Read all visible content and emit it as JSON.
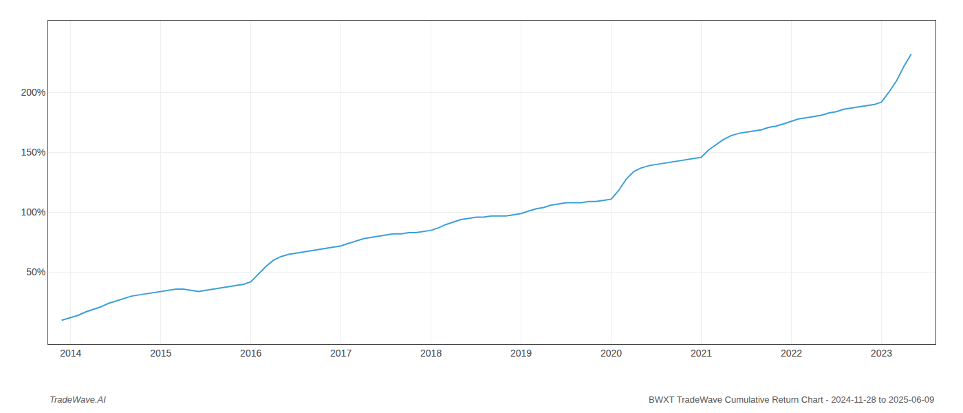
{
  "chart_data": {
    "type": "line",
    "title": "BWXT TradeWave Cumulative Return Chart - 2024-11-28 to 2025-06-09",
    "annotations": [
      "TradeWave.AI"
    ],
    "color": "#3a9fd8",
    "x": [
      2013.9,
      2013.95,
      2014.0,
      2014.08,
      2014.17,
      2014.25,
      2014.33,
      2014.42,
      2014.5,
      2014.58,
      2014.67,
      2014.75,
      2014.83,
      2014.92,
      2015.0,
      2015.08,
      2015.17,
      2015.25,
      2015.33,
      2015.42,
      2015.5,
      2015.58,
      2015.67,
      2015.75,
      2015.83,
      2015.92,
      2016.0,
      2016.08,
      2016.17,
      2016.25,
      2016.33,
      2016.42,
      2016.5,
      2016.58,
      2016.67,
      2016.75,
      2016.83,
      2016.92,
      2017.0,
      2017.08,
      2017.17,
      2017.25,
      2017.33,
      2017.42,
      2017.5,
      2017.58,
      2017.67,
      2017.75,
      2017.83,
      2017.92,
      2018.0,
      2018.08,
      2018.17,
      2018.25,
      2018.33,
      2018.42,
      2018.5,
      2018.58,
      2018.67,
      2018.75,
      2018.83,
      2018.92,
      2019.0,
      2019.08,
      2019.17,
      2019.25,
      2019.33,
      2019.42,
      2019.5,
      2019.58,
      2019.67,
      2019.75,
      2019.83,
      2019.92,
      2020.0,
      2020.08,
      2020.17,
      2020.25,
      2020.33,
      2020.42,
      2020.5,
      2020.58,
      2020.67,
      2020.75,
      2020.83,
      2020.92,
      2021.0,
      2021.08,
      2021.17,
      2021.25,
      2021.33,
      2021.42,
      2021.5,
      2021.58,
      2021.67,
      2021.75,
      2021.83,
      2021.92,
      2022.0,
      2022.08,
      2022.17,
      2022.25,
      2022.33,
      2022.42,
      2022.5,
      2022.58,
      2022.67,
      2022.75,
      2022.83,
      2022.92,
      2023.0,
      2023.08,
      2023.17,
      2023.25,
      2023.33
    ],
    "values": [
      0.1,
      0.11,
      0.12,
      0.14,
      0.17,
      0.19,
      0.21,
      0.24,
      0.26,
      0.28,
      0.3,
      0.31,
      0.32,
      0.33,
      0.34,
      0.35,
      0.36,
      0.36,
      0.35,
      0.34,
      0.35,
      0.36,
      0.37,
      0.38,
      0.39,
      0.4,
      0.42,
      0.48,
      0.55,
      0.6,
      0.63,
      0.65,
      0.66,
      0.67,
      0.68,
      0.69,
      0.7,
      0.71,
      0.72,
      0.74,
      0.76,
      0.78,
      0.79,
      0.8,
      0.81,
      0.82,
      0.82,
      0.83,
      0.83,
      0.84,
      0.85,
      0.87,
      0.9,
      0.92,
      0.94,
      0.95,
      0.96,
      0.96,
      0.97,
      0.97,
      0.97,
      0.98,
      0.99,
      1.01,
      1.03,
      1.04,
      1.06,
      1.07,
      1.08,
      1.08,
      1.08,
      1.09,
      1.09,
      1.1,
      1.11,
      1.18,
      1.28,
      1.34,
      1.37,
      1.39,
      1.4,
      1.41,
      1.42,
      1.43,
      1.44,
      1.45,
      1.46,
      1.52,
      1.57,
      1.61,
      1.64,
      1.66,
      1.67,
      1.68,
      1.69,
      1.71,
      1.72,
      1.74,
      1.76,
      1.78,
      1.79,
      1.8,
      1.81,
      1.83,
      1.84,
      1.86,
      1.87,
      1.88,
      1.89,
      1.9,
      1.92,
      2.0,
      2.1,
      2.22,
      2.32
    ],
    "xlim": [
      2013.75,
      2023.6
    ],
    "xticks": [
      2014,
      2015,
      2016,
      2017,
      2018,
      2019,
      2020,
      2021,
      2022,
      2023
    ],
    "ylim": [
      -0.1,
      2.6
    ],
    "yticks": [
      {
        "value": 0.5,
        "label": "50%"
      },
      {
        "value": 1.0,
        "label": "100%"
      },
      {
        "value": 1.5,
        "label": "150%"
      },
      {
        "value": 2.0,
        "label": "200%"
      }
    ],
    "grid": true
  }
}
